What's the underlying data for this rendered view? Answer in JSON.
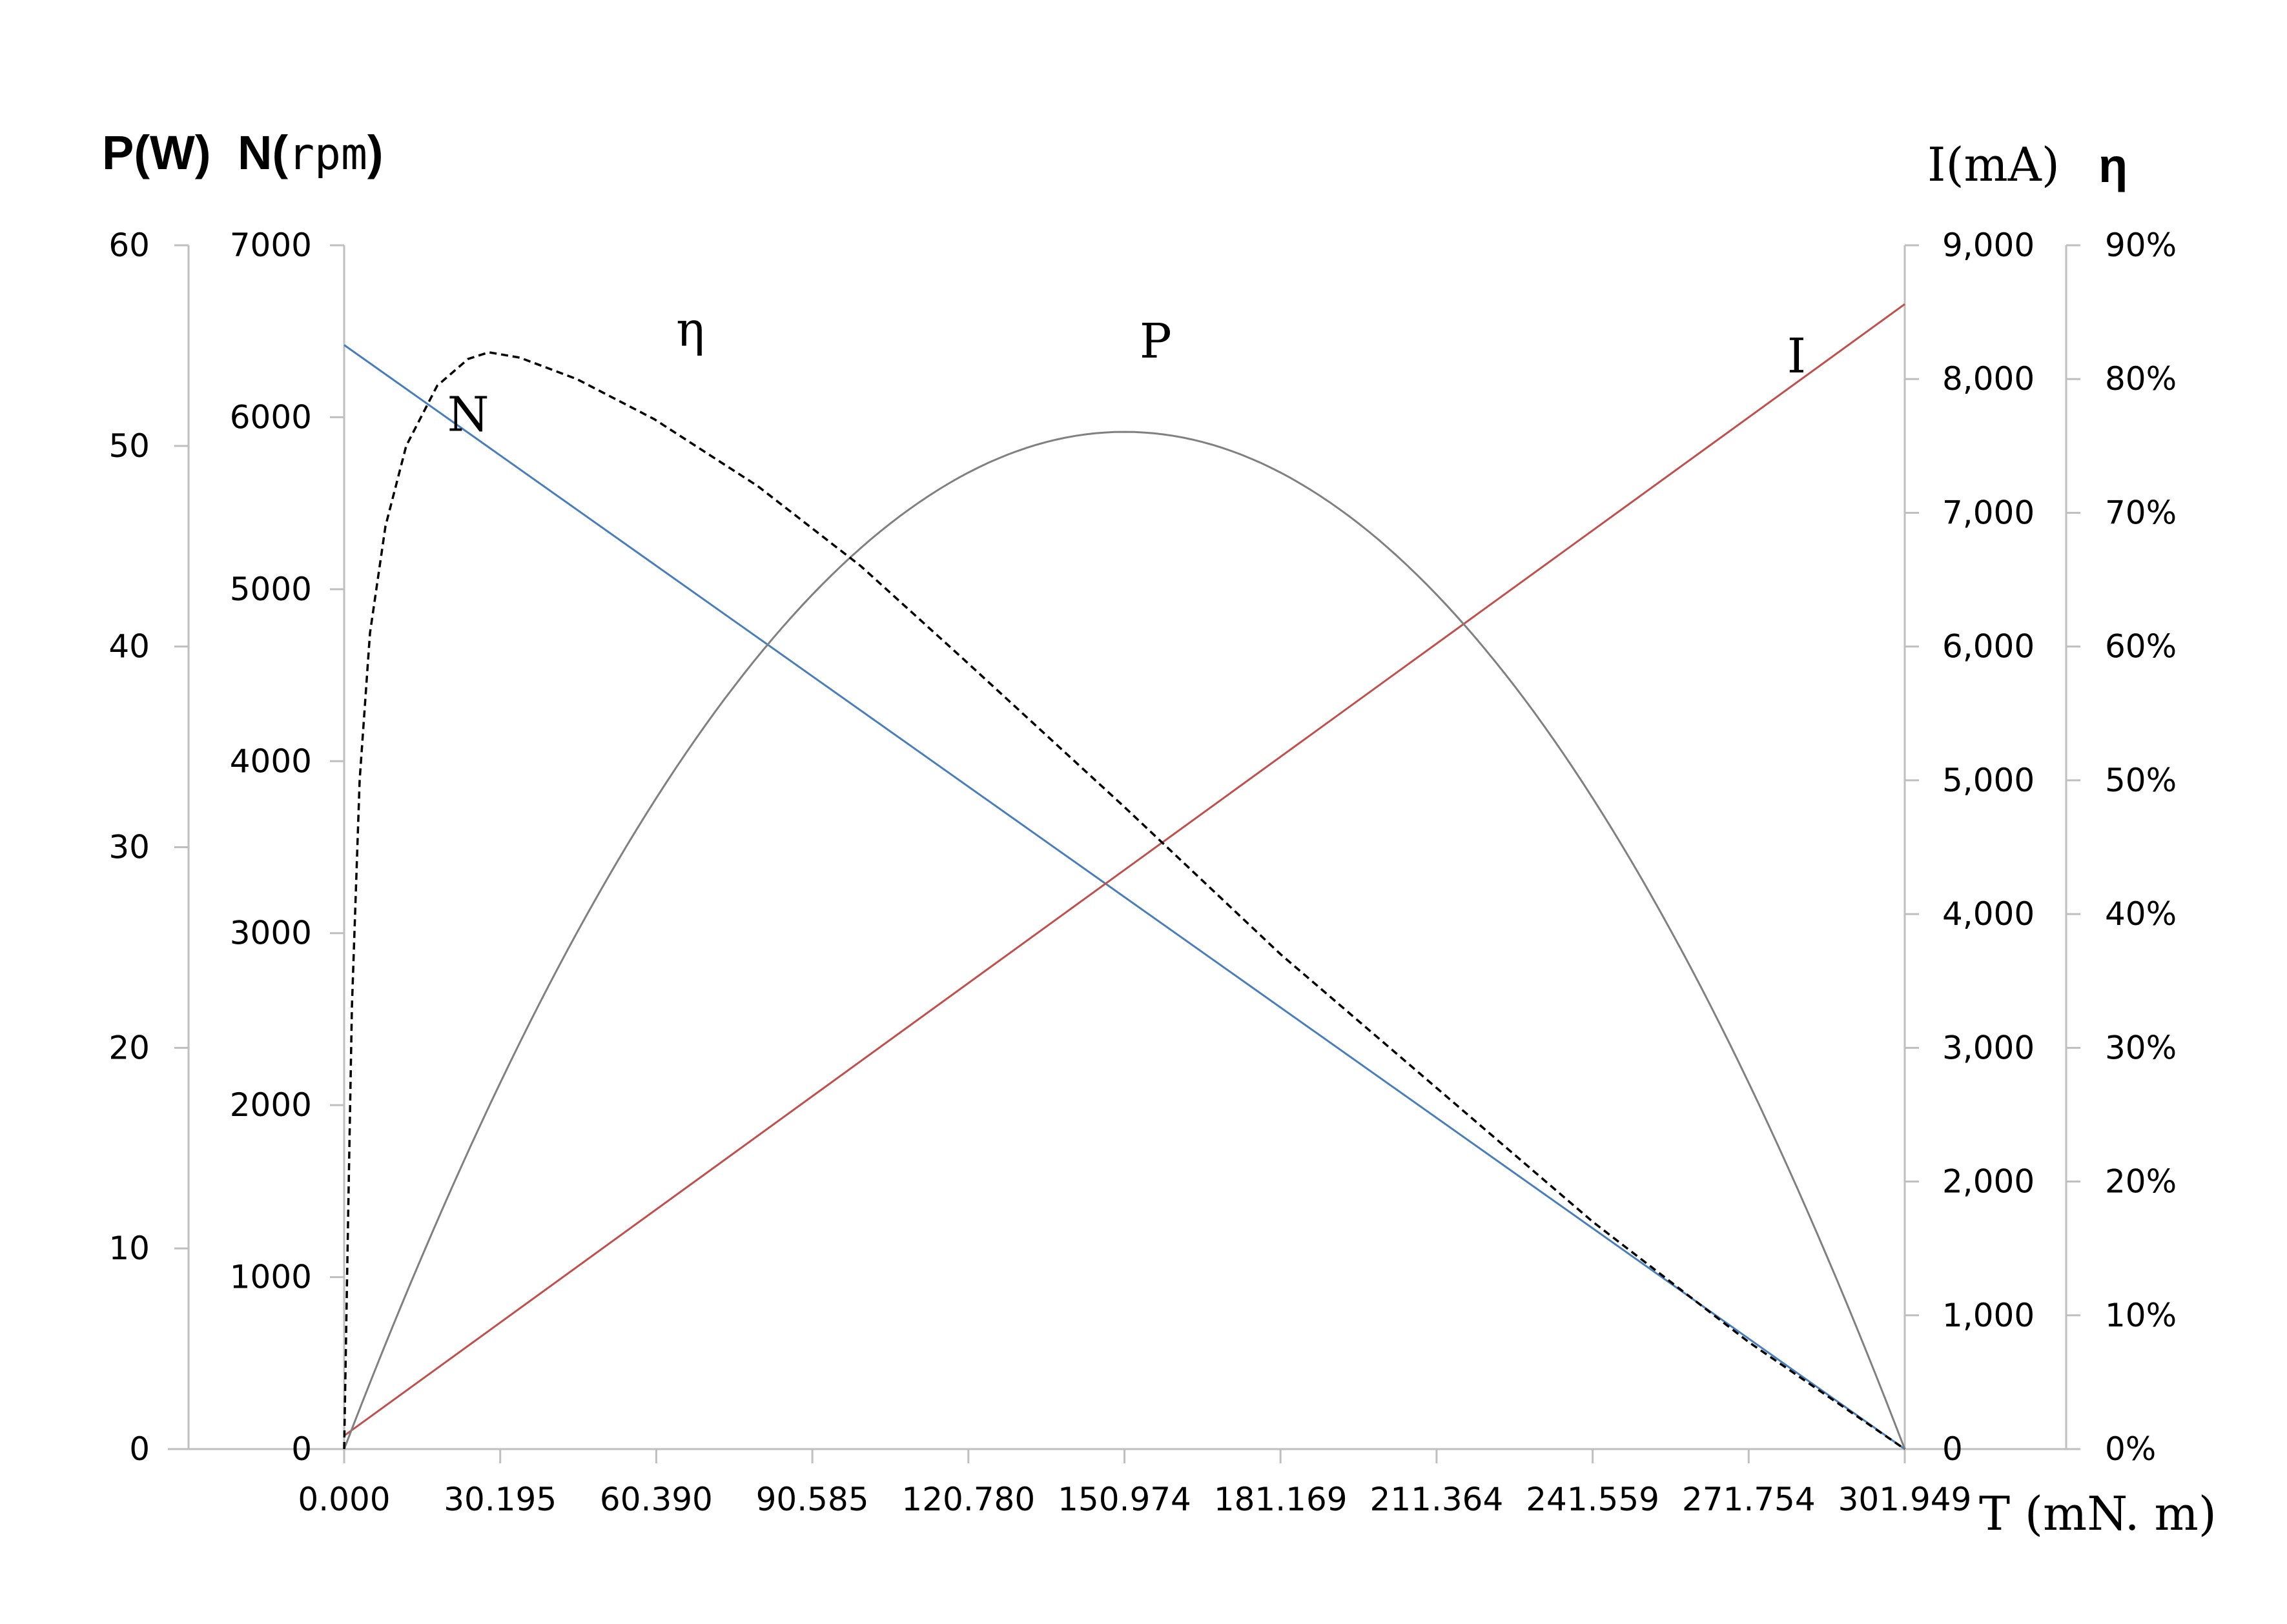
{
  "chart_data": {
    "type": "line",
    "x": {
      "label": "T (mN. m)",
      "ticks": [
        "0.000",
        "30.195",
        "60.390",
        "90.585",
        "120.780",
        "150.974",
        "181.169",
        "211.364",
        "241.559",
        "271.754",
        "301.949"
      ],
      "range": [
        0,
        301.949
      ]
    },
    "axes": {
      "power": {
        "label_left": "P(W)",
        "ticks": [
          "0",
          "10",
          "20",
          "30",
          "40",
          "50",
          "60"
        ],
        "range": [
          0,
          60
        ]
      },
      "speed": {
        "label_main": "N(",
        "label_unit": "rpm",
        "label_close": ")",
        "ticks": [
          "0",
          "1000",
          "2000",
          "3000",
          "4000",
          "5000",
          "6000",
          "7000"
        ],
        "range": [
          0,
          7000
        ]
      },
      "current": {
        "label": "I(mA)",
        "ticks": [
          "0",
          "1,000",
          "2,000",
          "3,000",
          "4,000",
          "5,000",
          "6,000",
          "7,000",
          "8,000",
          "9,000"
        ],
        "range": [
          0,
          9000
        ]
      },
      "efficiency": {
        "label": "η",
        "ticks": [
          "0%",
          "10%",
          "20%",
          "30%",
          "40%",
          "50%",
          "60%",
          "70%",
          "80%",
          "90%"
        ],
        "range": [
          0,
          90
        ]
      }
    },
    "series": [
      {
        "name": "N",
        "axis": "speed",
        "color": "#4a7ebb",
        "dash": false,
        "points": [
          [
            0,
            6420
          ],
          [
            301.949,
            0
          ]
        ]
      },
      {
        "name": "I",
        "axis": "current",
        "color": "#c0504d",
        "dash": false,
        "points": [
          [
            0,
            100
          ],
          [
            301.949,
            8560
          ]
        ]
      },
      {
        "name": "P",
        "axis": "power",
        "color": "#808080",
        "dash": false,
        "peak_x": 150.974,
        "peak_y": 50.7
      },
      {
        "name": "η",
        "axis": "efficiency",
        "color": "#000000",
        "dash": true,
        "points": [
          [
            0,
            0
          ],
          [
            0.8,
            18
          ],
          [
            1.5,
            33
          ],
          [
            3,
            50
          ],
          [
            5,
            61
          ],
          [
            8,
            69
          ],
          [
            12,
            75
          ],
          [
            18,
            79.5
          ],
          [
            24,
            81.5
          ],
          [
            28,
            82
          ],
          [
            34,
            81.6
          ],
          [
            45,
            80
          ],
          [
            60,
            77
          ],
          [
            80,
            72
          ],
          [
            100,
            66
          ],
          [
            120,
            59
          ],
          [
            150.974,
            48
          ],
          [
            181.169,
            37
          ],
          [
            211.364,
            27
          ],
          [
            241.559,
            17
          ],
          [
            271.754,
            8
          ],
          [
            301.949,
            0
          ]
        ]
      }
    ],
    "labels": [
      {
        "text": "η",
        "x": 67,
        "y": 82.5
      },
      {
        "text": "P",
        "x": 157,
        "y": 54.4
      },
      {
        "text": "I",
        "x": 281,
        "y": 8050
      },
      {
        "text": "N",
        "x": 24,
        "y": 5920
      }
    ],
    "grid": false
  }
}
